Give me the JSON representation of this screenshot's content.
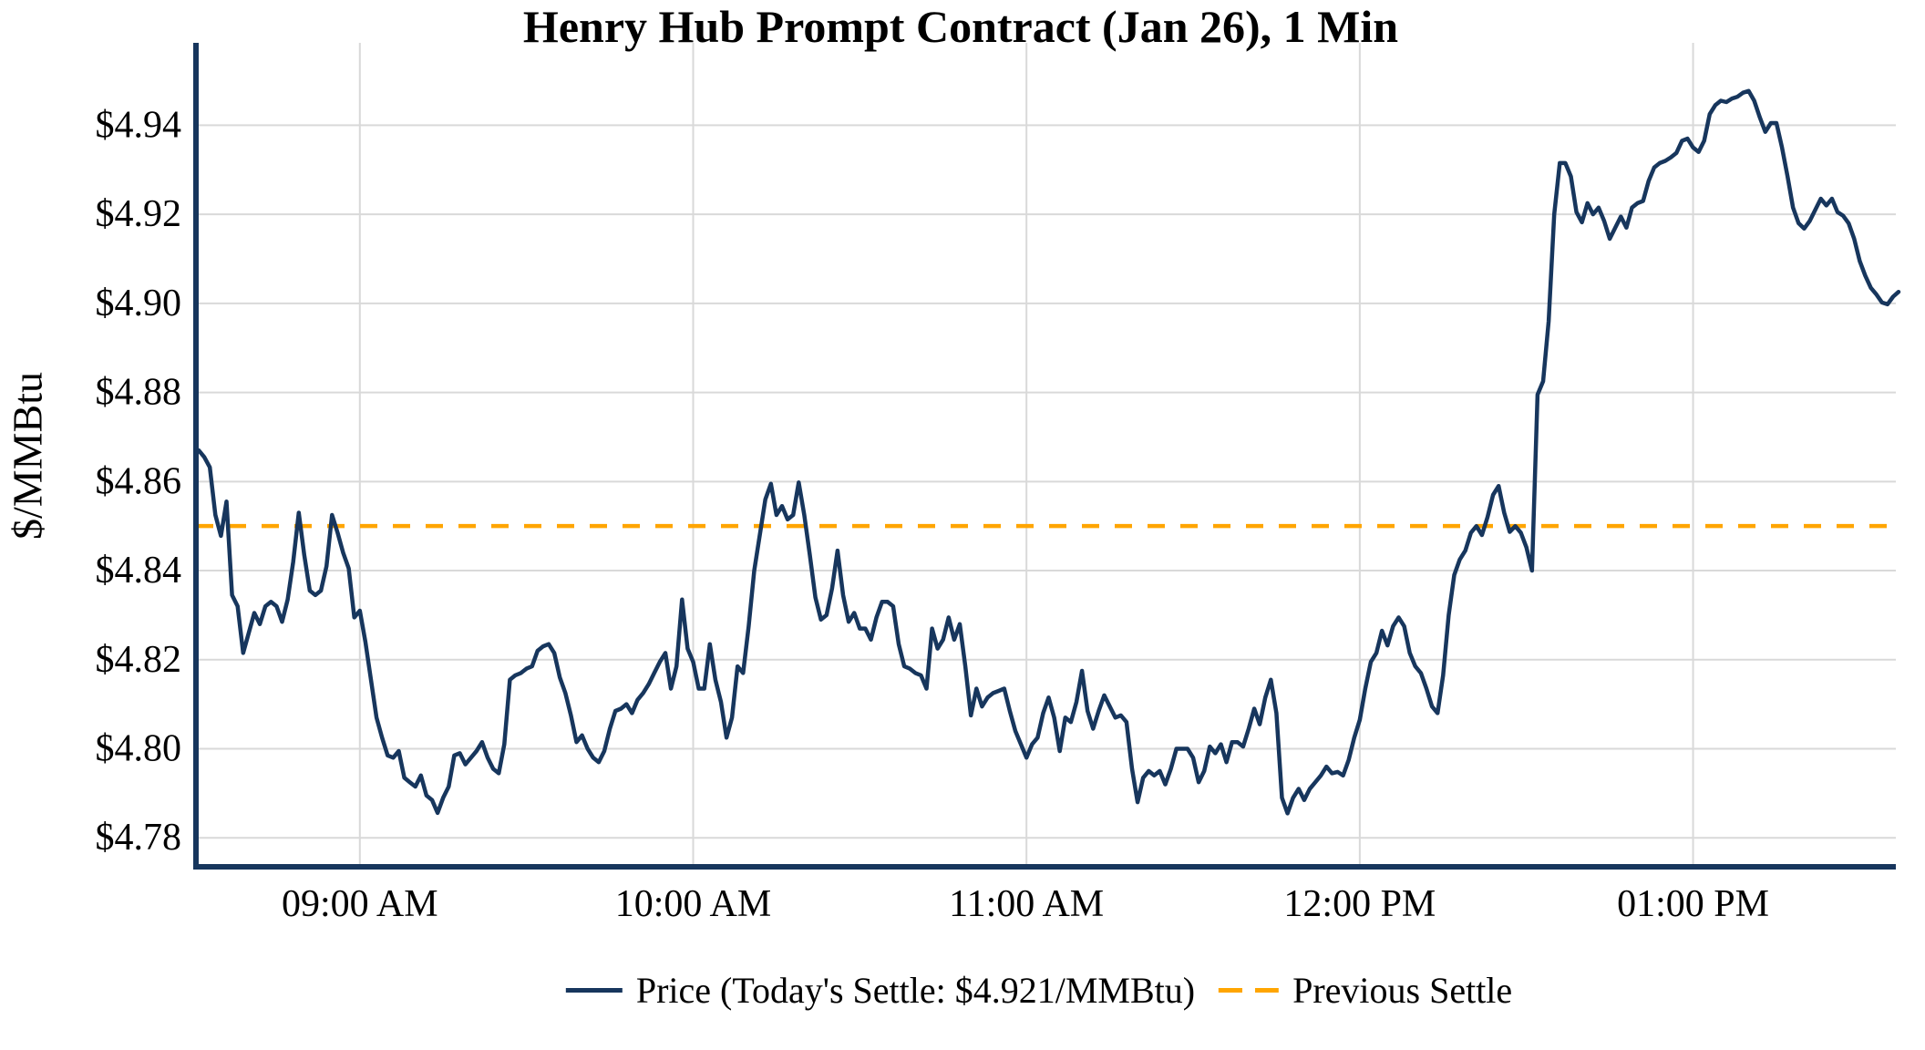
{
  "chart_data": {
    "type": "line",
    "title": "Henry Hub Prompt Contract (Jan 26), 1 Min",
    "ylabel": "$/MMBtu",
    "xlabel": "",
    "x_unit": "minutes after 08:30 AM",
    "grid": true,
    "legend_position": "bottom",
    "xlim": [
      0.5,
      306.5
    ],
    "ylim": [
      4.7735,
      4.9585
    ],
    "x_ticks": [
      {
        "minute": 30,
        "label": "09:00 AM"
      },
      {
        "minute": 90,
        "label": "10:00 AM"
      },
      {
        "minute": 150,
        "label": "11:00 AM"
      },
      {
        "minute": 210,
        "label": "12:00 PM"
      },
      {
        "minute": 270,
        "label": "01:00 PM"
      }
    ],
    "y_ticks": [
      {
        "value": 4.78,
        "label": "$4.78"
      },
      {
        "value": 4.8,
        "label": "$4.80"
      },
      {
        "value": 4.82,
        "label": "$4.82"
      },
      {
        "value": 4.84,
        "label": "$4.84"
      },
      {
        "value": 4.86,
        "label": "$4.86"
      },
      {
        "value": 4.88,
        "label": "$4.88"
      },
      {
        "value": 4.9,
        "label": "$4.90"
      },
      {
        "value": 4.92,
        "label": "$4.92"
      },
      {
        "value": 4.94,
        "label": "$4.94"
      }
    ],
    "today_settle": 4.921,
    "previous_settle": 4.85,
    "series": [
      {
        "name": "Price (Today's Settle: $4.921/MMBtu)",
        "color": "#17365d",
        "style": "solid",
        "start_minute": 1,
        "step_minutes": 1,
        "values": [
          4.867,
          4.8655,
          4.8632,
          4.8525,
          4.8478,
          4.8555,
          4.8345,
          4.832,
          4.8215,
          4.826,
          4.8305,
          4.828,
          4.832,
          4.833,
          4.832,
          4.8285,
          4.8335,
          4.842,
          4.853,
          4.8435,
          4.8355,
          4.8345,
          4.8355,
          4.841,
          4.8525,
          4.8485,
          4.844,
          4.8405,
          4.8295,
          4.831,
          4.824,
          4.8155,
          4.807,
          4.8025,
          4.7985,
          4.798,
          4.7995,
          4.7935,
          4.7925,
          4.7915,
          4.794,
          4.7895,
          4.7885,
          4.7856,
          4.789,
          4.7915,
          4.7985,
          4.799,
          4.7965,
          4.798,
          4.7995,
          4.8015,
          4.798,
          4.7955,
          4.7945,
          4.801,
          4.8155,
          4.8165,
          4.817,
          4.818,
          4.8185,
          4.822,
          4.823,
          4.8235,
          4.8215,
          4.816,
          4.8125,
          4.8075,
          4.8015,
          4.803,
          4.8,
          4.798,
          4.797,
          4.7995,
          4.8045,
          4.8085,
          4.809,
          4.81,
          4.808,
          4.811,
          4.8125,
          4.8145,
          4.817,
          4.8195,
          4.8215,
          4.8135,
          4.8185,
          4.8335,
          4.8225,
          4.8195,
          4.8135,
          4.8135,
          4.8235,
          4.8155,
          4.8105,
          4.8025,
          4.807,
          4.8185,
          4.817,
          4.8275,
          4.84,
          4.848,
          4.856,
          4.8595,
          4.8525,
          4.8545,
          4.8515,
          4.8525,
          4.8598,
          4.8525,
          4.8435,
          4.834,
          4.829,
          4.83,
          4.836,
          4.8445,
          4.8345,
          4.8285,
          4.8305,
          4.827,
          4.827,
          4.8245,
          4.8295,
          4.833,
          4.833,
          4.832,
          4.8235,
          4.8185,
          4.818,
          4.817,
          4.8165,
          4.8135,
          4.827,
          4.8225,
          4.8245,
          4.8295,
          4.8245,
          4.828,
          4.8185,
          4.8075,
          4.8135,
          4.8095,
          4.8115,
          4.8125,
          4.813,
          4.8135,
          4.8085,
          4.804,
          4.801,
          4.798,
          4.801,
          4.8025,
          4.808,
          4.8115,
          4.807,
          4.7995,
          4.807,
          4.806,
          4.8105,
          4.8175,
          4.8085,
          4.8045,
          4.8085,
          4.812,
          4.8095,
          4.807,
          4.8075,
          4.806,
          4.7955,
          4.788,
          4.7935,
          4.795,
          4.794,
          4.795,
          4.792,
          4.7955,
          4.8,
          4.8,
          4.8,
          4.798,
          4.7925,
          4.795,
          4.8005,
          4.799,
          4.801,
          4.797,
          4.8015,
          4.8015,
          4.8005,
          4.8045,
          4.809,
          4.8055,
          4.8115,
          4.8155,
          4.808,
          4.789,
          4.7855,
          4.789,
          4.791,
          4.7885,
          4.791,
          4.7925,
          4.794,
          4.796,
          4.7945,
          4.7948,
          4.794,
          4.7975,
          4.8025,
          4.8065,
          4.8135,
          4.8195,
          4.8215,
          4.8265,
          4.8232,
          4.8275,
          4.8295,
          4.8275,
          4.8215,
          4.8185,
          4.817,
          4.8135,
          4.8095,
          4.808,
          4.8165,
          4.83,
          4.839,
          4.8425,
          4.8445,
          4.8485,
          4.85,
          4.848,
          4.852,
          4.857,
          4.859,
          4.853,
          4.8487,
          4.85,
          4.8485,
          4.8452,
          4.84,
          4.8795,
          4.8825,
          4.896,
          4.92,
          4.9315,
          4.9315,
          4.9285,
          4.9205,
          4.9182,
          4.9225,
          4.92,
          4.9215,
          4.9185,
          4.9145,
          4.917,
          4.9195,
          4.917,
          4.9215,
          4.9225,
          4.923,
          4.9275,
          4.9305,
          4.9315,
          4.932,
          4.9328,
          4.9338,
          4.9365,
          4.937,
          4.935,
          4.934,
          4.9365,
          4.9425,
          4.9445,
          4.9455,
          4.9452,
          4.946,
          4.9464,
          4.9473,
          4.9477,
          4.9455,
          4.9418,
          4.9385,
          4.9405,
          4.9405,
          4.935,
          4.9285,
          4.9215,
          4.918,
          4.9168,
          4.9185,
          4.921,
          4.9235,
          4.922,
          4.9235,
          4.9205,
          4.9197,
          4.918,
          4.9145,
          4.9095,
          4.9062,
          4.9035,
          4.902,
          4.9002,
          4.8998,
          4.9015,
          4.9026
        ]
      },
      {
        "name": "Previous Settle",
        "color": "#ffa500",
        "style": "dashed",
        "value": 4.85
      }
    ],
    "style": {
      "line_color": "#17365d",
      "settle_color": "#ffa500",
      "grid_color": "#d9d9d9",
      "axis_color": "#17365d",
      "text_color": "#000000",
      "background": "#ffffff"
    }
  }
}
